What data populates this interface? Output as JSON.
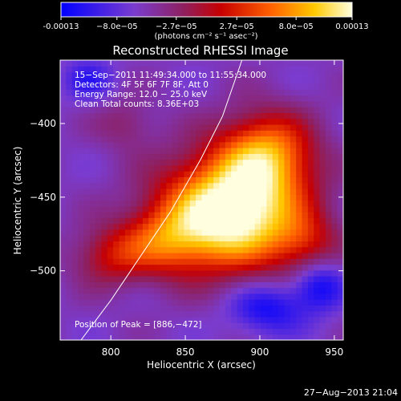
{
  "colorbar": {
    "ticks": [
      "-0.00013",
      "−8.0e−05",
      "−2.7e−05",
      "2.7e−05",
      "8.0e−05",
      "0.00013"
    ],
    "tick_values": [
      -0.00013,
      -8e-05,
      -2.7e-05,
      2.7e-05,
      8e-05,
      0.00013
    ],
    "range": [
      -0.00013,
      0.00013
    ],
    "units": "(photons cm⁻² s⁻¹ asec⁻²)"
  },
  "info": {
    "time": "15−Sep−2011 11:49:34.000 to 11:55:34.000",
    "detectors": "Detectors: 4F 5F 6F 7F 8F, Att 0",
    "energy": "Energy Range: 12.0 − 25.0 keV",
    "clean": "Clean     Total counts: 8.36E+03",
    "peak": "Position of Peak = [886,−472]"
  },
  "footer": {
    "date": "27−Aug−2013 21:04"
  },
  "chart_data": {
    "type": "heatmap",
    "title": "Reconstructed RHESSI Image",
    "xlabel": "Heliocentric X (arcsec)",
    "ylabel": "Heliocentric Y (arcsec)",
    "xlim": [
      766,
      956
    ],
    "ylim": [
      -547,
      -357
    ],
    "x_ticks": [
      800,
      850,
      900,
      950
    ],
    "y_ticks": [
      -400,
      -450,
      -500
    ],
    "x_tick_labels": [
      "800",
      "850",
      "900",
      "950"
    ],
    "y_tick_labels": [
      "−400",
      "−450",
      "−500"
    ],
    "peak": [
      886,
      -472
    ],
    "limb_points": [
      [
        780,
        -547
      ],
      [
        800,
        -520
      ],
      [
        820,
        -490
      ],
      [
        840,
        -460
      ],
      [
        860,
        -425
      ],
      [
        875,
        -395
      ],
      [
        888,
        -357
      ]
    ],
    "colormap": [
      "#0000ff",
      "#7a3cd0",
      "#8e2060",
      "#c80000",
      "#ff6000",
      "#ffc800",
      "#ffffe0"
    ],
    "sources": [
      {
        "x": 880,
        "y": -460,
        "sx": 32,
        "sy": 26,
        "amp": 1.0
      },
      {
        "x": 905,
        "y": -420,
        "sx": 22,
        "sy": 20,
        "amp": 0.55
      },
      {
        "x": 836,
        "y": -480,
        "sx": 20,
        "sy": 16,
        "amp": 0.35
      },
      {
        "x": 800,
        "y": -490,
        "sx": 18,
        "sy": 14,
        "amp": 0.3
      },
      {
        "x": 810,
        "y": -400,
        "sx": 14,
        "sy": 12,
        "amp": 0.15
      },
      {
        "x": 930,
        "y": -480,
        "sx": 16,
        "sy": 14,
        "amp": 0.25
      },
      {
        "x": 785,
        "y": -370,
        "sx": 12,
        "sy": 10,
        "amp": -0.2
      },
      {
        "x": 905,
        "y": -525,
        "sx": 18,
        "sy": 12,
        "amp": -0.3
      },
      {
        "x": 940,
        "y": -510,
        "sx": 12,
        "sy": 12,
        "amp": -0.3
      }
    ]
  }
}
